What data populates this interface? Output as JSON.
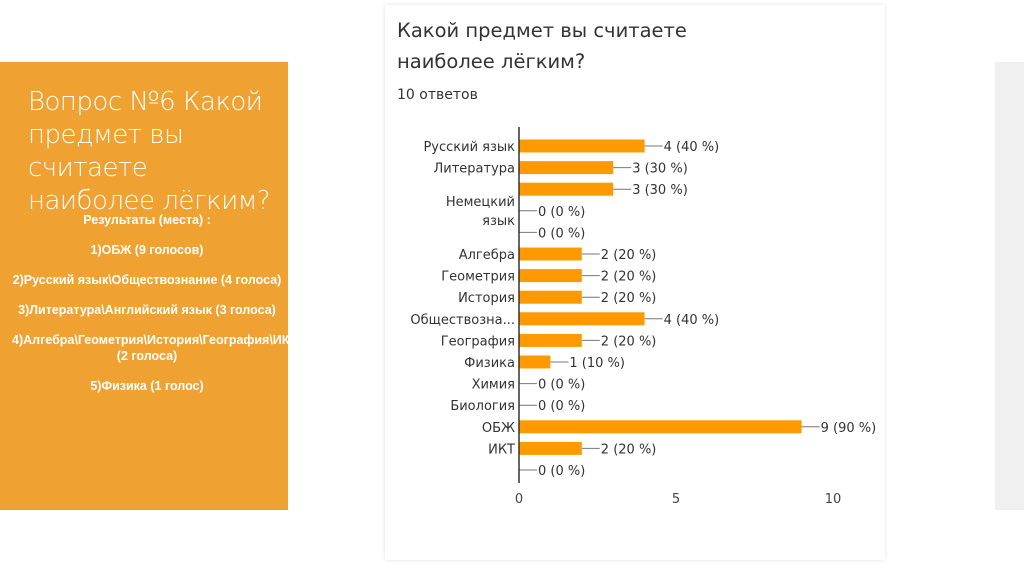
{
  "panel": {
    "title": "Вопрос №6 Какой предмет вы считаете наиболее лёгким?",
    "results": [
      "Результаты (места) :",
      "1)ОБЖ (9 голосов)",
      "2)Русский язык\\Обществознание (4 голоса)",
      "3)Литература\\Английский язык (3 голоса)",
      "4)Алгебра\\Геометрия\\История\\География\\ИКТ (2 голоса)",
      "5)Физика (1 голос)"
    ]
  },
  "chart_data": {
    "type": "bar",
    "orientation": "horizontal",
    "title": "Какой предмет вы считаете наиболее лёгким?",
    "subtitle": "10 ответов",
    "categories": [
      "Русский язык",
      "Литература",
      "",
      "Немецкий язык",
      "",
      "Алгебра",
      "Геометрия",
      "История",
      "Обществозна...",
      "География",
      "Физика",
      "Химия",
      "Биология",
      "ОБЖ",
      "ИКТ",
      ""
    ],
    "values": [
      4,
      3,
      3,
      0,
      0,
      2,
      2,
      2,
      4,
      2,
      1,
      0,
      0,
      9,
      2,
      0
    ],
    "data_labels": [
      "4 (40 %)",
      "3 (30 %)",
      "3 (30 %)",
      "0 (0 %)",
      "0 (0 %)",
      "2 (20 %)",
      "2 (20 %)",
      "2 (20 %)",
      "4 (40 %)",
      "2 (20 %)",
      "1 (10 %)",
      "0 (0 %)",
      "0 (0 %)",
      "9 (90 %)",
      "2 (20 %)",
      "0 (0 %)"
    ],
    "xlim": [
      0,
      10
    ],
    "xticks": [
      "0",
      "5",
      "10"
    ],
    "grid": false,
    "bar_color": "#ff9900"
  }
}
